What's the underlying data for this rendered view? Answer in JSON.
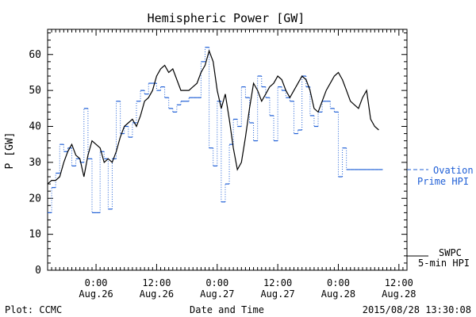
{
  "chart_data": {
    "type": "line",
    "title": "Hemispheric Power [GW]",
    "ylabel": "P [GW]",
    "xlabel": "Date and Time",
    "ylim": [
      0,
      67
    ],
    "xlim": [
      0,
      89
    ],
    "yticks": [
      0,
      10,
      20,
      30,
      40,
      50,
      60
    ],
    "xticks": [
      {
        "x": 12,
        "label": "0:00",
        "date": "Aug.26"
      },
      {
        "x": 27,
        "label": "12:00",
        "date": "Aug.26"
      },
      {
        "x": 42,
        "label": "0:00",
        "date": "Aug.27"
      },
      {
        "x": 57,
        "label": "12:00",
        "date": "Aug.27"
      },
      {
        "x": 72,
        "label": "0:00",
        "date": "Aug.28"
      },
      {
        "x": 87,
        "label": "12:00",
        "date": "Aug.28"
      }
    ],
    "series": [
      {
        "name": "SWPC 5-min HPI",
        "label_lines": [
          "SWPC",
          "5-min HPI"
        ],
        "color": "#000000",
        "style": "solid",
        "points": [
          [
            0,
            24
          ],
          [
            1,
            25
          ],
          [
            2,
            25
          ],
          [
            3,
            26
          ],
          [
            4,
            30
          ],
          [
            5,
            33
          ],
          [
            6,
            35
          ],
          [
            7,
            32
          ],
          [
            8,
            31
          ],
          [
            9,
            26
          ],
          [
            10,
            32
          ],
          [
            11,
            36
          ],
          [
            12,
            35
          ],
          [
            13,
            34
          ],
          [
            14,
            30
          ],
          [
            15,
            31
          ],
          [
            16,
            30
          ],
          [
            17,
            33
          ],
          [
            18,
            37
          ],
          [
            19,
            40
          ],
          [
            20,
            41
          ],
          [
            21,
            42
          ],
          [
            22,
            40
          ],
          [
            23,
            43
          ],
          [
            24,
            47
          ],
          [
            25,
            48
          ],
          [
            26,
            50
          ],
          [
            27,
            54
          ],
          [
            28,
            56
          ],
          [
            29,
            57
          ],
          [
            30,
            55
          ],
          [
            31,
            56
          ],
          [
            32,
            53
          ],
          [
            33,
            50
          ],
          [
            34,
            50
          ],
          [
            35,
            50
          ],
          [
            36,
            51
          ],
          [
            37,
            52
          ],
          [
            38,
            55
          ],
          [
            39,
            57
          ],
          [
            40,
            61
          ],
          [
            41,
            58
          ],
          [
            42,
            50
          ],
          [
            43,
            45
          ],
          [
            44,
            49
          ],
          [
            45,
            42
          ],
          [
            46,
            34
          ],
          [
            47,
            28
          ],
          [
            48,
            30
          ],
          [
            49,
            37
          ],
          [
            50,
            45
          ],
          [
            51,
            52
          ],
          [
            52,
            50
          ],
          [
            53,
            47
          ],
          [
            54,
            49
          ],
          [
            55,
            51
          ],
          [
            56,
            52
          ],
          [
            57,
            54
          ],
          [
            58,
            53
          ],
          [
            59,
            50
          ],
          [
            60,
            48
          ],
          [
            61,
            50
          ],
          [
            62,
            52
          ],
          [
            63,
            54
          ],
          [
            64,
            53
          ],
          [
            65,
            50
          ],
          [
            66,
            45
          ],
          [
            67,
            44
          ],
          [
            68,
            47
          ],
          [
            69,
            50
          ],
          [
            70,
            52
          ],
          [
            71,
            54
          ],
          [
            72,
            55
          ],
          [
            73,
            53
          ],
          [
            74,
            50
          ],
          [
            75,
            47
          ],
          [
            76,
            46
          ],
          [
            77,
            45
          ],
          [
            78,
            48
          ],
          [
            79,
            50
          ],
          [
            80,
            42
          ],
          [
            81,
            40
          ],
          [
            82,
            39
          ]
        ]
      },
      {
        "name": "Ovation Prime HPI",
        "label_lines": [
          "Ovation",
          "Prime HPI"
        ],
        "color": "#1f5fd6",
        "style": "stepped-dotted",
        "points": [
          [
            0,
            16
          ],
          [
            1,
            23
          ],
          [
            2,
            27
          ],
          [
            3,
            35
          ],
          [
            4,
            33
          ],
          [
            5,
            34
          ],
          [
            6,
            29
          ],
          [
            7,
            31
          ],
          [
            8,
            30
          ],
          [
            9,
            45
          ],
          [
            10,
            31
          ],
          [
            11,
            16
          ],
          [
            12,
            16
          ],
          [
            13,
            33
          ],
          [
            14,
            31
          ],
          [
            15,
            17
          ],
          [
            16,
            31
          ],
          [
            17,
            47
          ],
          [
            18,
            38
          ],
          [
            19,
            40
          ],
          [
            20,
            37
          ],
          [
            21,
            41
          ],
          [
            22,
            47
          ],
          [
            23,
            50
          ],
          [
            24,
            49
          ],
          [
            25,
            52
          ],
          [
            26,
            52
          ],
          [
            27,
            50
          ],
          [
            28,
            51
          ],
          [
            29,
            48
          ],
          [
            30,
            45
          ],
          [
            31,
            44
          ],
          [
            32,
            46
          ],
          [
            33,
            47
          ],
          [
            34,
            47
          ],
          [
            35,
            48
          ],
          [
            36,
            48
          ],
          [
            37,
            48
          ],
          [
            38,
            58
          ],
          [
            39,
            62
          ],
          [
            40,
            34
          ],
          [
            41,
            29
          ],
          [
            42,
            47
          ],
          [
            43,
            19
          ],
          [
            44,
            24
          ],
          [
            45,
            35
          ],
          [
            46,
            42
          ],
          [
            47,
            40
          ],
          [
            48,
            51
          ],
          [
            49,
            48
          ],
          [
            50,
            41
          ],
          [
            51,
            36
          ],
          [
            52,
            54
          ],
          [
            53,
            51
          ],
          [
            54,
            48
          ],
          [
            55,
            43
          ],
          [
            56,
            36
          ],
          [
            57,
            51
          ],
          [
            58,
            50
          ],
          [
            59,
            48
          ],
          [
            60,
            47
          ],
          [
            61,
            38
          ],
          [
            62,
            39
          ],
          [
            63,
            54
          ],
          [
            64,
            51
          ],
          [
            65,
            43
          ],
          [
            66,
            40
          ],
          [
            67,
            44
          ],
          [
            68,
            47
          ],
          [
            69,
            47
          ],
          [
            70,
            45
          ],
          [
            71,
            44
          ],
          [
            72,
            26
          ],
          [
            73,
            34
          ],
          [
            74,
            28
          ],
          [
            75,
            28
          ],
          [
            76,
            28
          ],
          [
            77,
            28
          ],
          [
            78,
            28
          ],
          [
            79,
            28
          ],
          [
            80,
            28
          ],
          [
            81,
            28
          ],
          [
            82,
            28
          ]
        ]
      }
    ]
  },
  "footer": {
    "left": "Plot: CCMC",
    "center": "Date and Time",
    "right": "2015/08/28 13:30:08"
  }
}
